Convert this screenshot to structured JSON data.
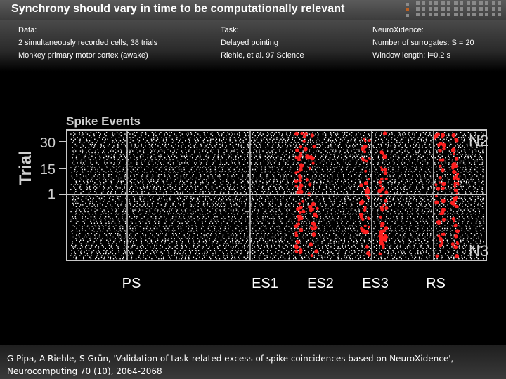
{
  "slide": {
    "title": "Synchrony should vary in time to be computationally relevant"
  },
  "info": {
    "data": {
      "heading": "Data:",
      "line1": "2 simultaneously recorded cells, 38 trials",
      "line2": "Monkey primary motor cortex (awake)"
    },
    "task": {
      "heading": "Task:",
      "line1": "Delayed pointing",
      "line2": "Riehle, et al. 97 Science"
    },
    "neuroxidence": {
      "heading": "NeuroXidence:",
      "line1": "Number of surrogates: S = 20",
      "line2": "Window length: l=0.2 s"
    }
  },
  "raster": {
    "panel_title": "Spike Events",
    "y_axis_label": "Trial",
    "y_ticks": [
      "30",
      "15",
      "1"
    ],
    "neuron_top": "N2",
    "neuron_bottom": "N3",
    "epochs": [
      "PS",
      "ES1",
      "ES2",
      "ES3",
      "RS"
    ],
    "colors": {
      "background": "#000000",
      "frame": "#c8c8c8",
      "spike": "#ffffff",
      "coincidence": "#ff2020"
    }
  },
  "citation": "G Pipa, A Riehle, S Grün, 'Validation of task-related excess of spike coincidences based on NeuroXidence', Neurocomputing 70 (10), 2064-2068"
}
